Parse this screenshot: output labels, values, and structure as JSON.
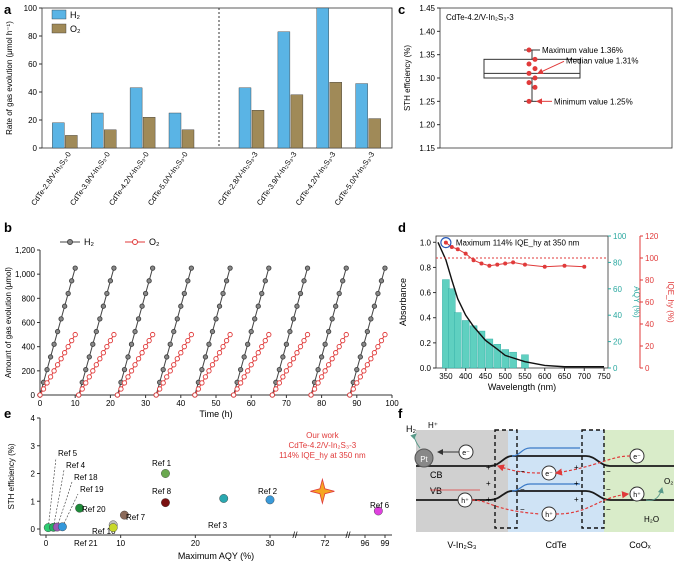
{
  "panels": {
    "a": {
      "letter": "a",
      "chart_data": {
        "type": "bar",
        "ylabel": "Rate of gas evolution (μmol h⁻¹)",
        "ylim": [
          0,
          100
        ],
        "yticks": [
          0,
          20,
          40,
          60,
          80,
          100
        ],
        "categories": [
          "CdTe-2.8/V-In₂S₃-0",
          "CdTe-3.9/V-In₂S₃-0",
          "CdTe-4.2/V-In₂S₃-0",
          "CdTe-5.0/V-In₂S₃-0",
          "CdTe-2.8/V-In₂S₃-3",
          "CdTe-3.9/V-In₂S₃-3",
          "CdTe-4.2/V-In₂S₃-3",
          "CdTe-5.0/V-In₂S₃-3"
        ],
        "series": [
          {
            "name": "H₂",
            "color": "#5ab4e5",
            "values": [
              18,
              25,
              43,
              25,
              43,
              83,
              100,
              46
            ]
          },
          {
            "name": "O₂",
            "color": "#a08a58",
            "values": [
              9,
              13,
              22,
              13,
              27,
              38,
              47,
              21
            ]
          }
        ],
        "legend_placement": "top-left"
      }
    },
    "b": {
      "letter": "b",
      "chart_data": {
        "type": "line",
        "xlabel": "Time (h)",
        "ylabel": "Amount of gas evolution (μmol)",
        "xlim": [
          0,
          100
        ],
        "ylim": [
          0,
          1200
        ],
        "xticks": [
          0,
          10,
          20,
          30,
          40,
          50,
          60,
          70,
          80,
          90,
          100
        ],
        "yticks": [
          0,
          200,
          400,
          600,
          800,
          1000,
          1200
        ],
        "cycle_hours": [
          0,
          1,
          2,
          3,
          4,
          5,
          6,
          7,
          8,
          9,
          10
        ],
        "cycle_starts": [
          0,
          11,
          22,
          33,
          44,
          55,
          66,
          77,
          88
        ],
        "series": [
          {
            "name": "H₂",
            "color": "#444444",
            "per_cycle": [
              0,
              105,
              210,
              315,
              420,
              525,
              630,
              735,
              840,
              945,
              1050
            ]
          },
          {
            "name": "O₂",
            "color": "#e03a3a",
            "per_cycle": [
              0,
              50,
              100,
              150,
              200,
              250,
              300,
              350,
              400,
              450,
              500
            ]
          }
        ]
      }
    },
    "c": {
      "letter": "c",
      "chart_data": {
        "type": "box",
        "title": "CdTe-4.2/V-In₂S₃-3",
        "ylabel": "STH efficiency (%)",
        "ylim": [
          1.15,
          1.45
        ],
        "yticks": [
          1.15,
          1.2,
          1.25,
          1.3,
          1.35,
          1.4,
          1.45
        ],
        "box": {
          "q1": 1.3,
          "median": 1.31,
          "q3": 1.34,
          "min": 1.25,
          "max": 1.36
        },
        "points": [
          1.36,
          1.34,
          1.33,
          1.32,
          1.31,
          1.3,
          1.29,
          1.28,
          1.25
        ],
        "annotations": {
          "max": "Maximum value 1.36%",
          "median": "Median value 1.31%",
          "min": "Minimum value 1.25%"
        }
      }
    },
    "d": {
      "letter": "d",
      "chart_data": {
        "type": "bar+line",
        "xlabel": "Wavelength (nm)",
        "ylabel_left": "Absorbance",
        "ylabel_right1": "AQY (%)",
        "ylabel_right2": "IQE_hy (%)",
        "xlim": [
          325,
          760
        ],
        "xticks": [
          350,
          400,
          450,
          500,
          550,
          600,
          650,
          700,
          750
        ],
        "abs_ticks": [
          0,
          0.2,
          0.4,
          0.6,
          0.8,
          1.0
        ],
        "aqy_ticks": [
          0,
          20,
          40,
          60,
          80,
          100
        ],
        "iqe_ticks": [
          0,
          20,
          40,
          60,
          80,
          100,
          120
        ],
        "aqy_bars": {
          "x": [
            350,
            365,
            380,
            400,
            420,
            440,
            460,
            480,
            500,
            520,
            550
          ],
          "values": [
            67,
            60,
            42,
            36,
            32,
            28,
            22,
            18,
            14,
            12,
            10
          ]
        },
        "aqy_color": "#5fd0c0",
        "absorbance": {
          "x": [
            330,
            350,
            365,
            380,
            400,
            420,
            450,
            480,
            500,
            550,
            600,
            650,
            700,
            750
          ],
          "values": [
            1.0,
            0.86,
            0.7,
            0.55,
            0.42,
            0.33,
            0.22,
            0.15,
            0.1,
            0.05,
            0.02,
            0.01,
            0.01,
            0.01
          ]
        },
        "iqe": {
          "x": [
            350,
            365,
            380,
            400,
            420,
            440,
            460,
            480,
            500,
            520,
            550,
            600,
            650,
            700
          ],
          "values": [
            114,
            110,
            108,
            104,
            98,
            95,
            93,
            94,
            95,
            96,
            94,
            92,
            93,
            92
          ]
        },
        "iqe_color": "#e03a3a",
        "iqe_ref": 100,
        "annotation": "Maximum 114% IQE_hy at 350 nm"
      }
    },
    "e": {
      "letter": "e",
      "chart_data": {
        "type": "scatter",
        "xlabel": "Maximum AQY (%)",
        "ylabel": "STH efficiency (%)",
        "ylim": [
          0,
          4
        ],
        "yticks": [
          0,
          1,
          2,
          3,
          4
        ],
        "xticks": [
          "0",
          "10",
          "20",
          "30",
          "72",
          "96",
          "99"
        ],
        "points": [
          {
            "name": "Ref 5",
            "x": 0.3,
            "y": 0.05,
            "color": "#2ecc71"
          },
          {
            "name": "Ref 4",
            "x": 1.0,
            "y": 0.06,
            "color": "#27ae60"
          },
          {
            "name": "Ref 18",
            "x": 1.5,
            "y": 0.07,
            "color": "#9b59b6"
          },
          {
            "name": "Ref 19",
            "x": 2.2,
            "y": 0.08,
            "color": "#3498db"
          },
          {
            "name": "Ref 20",
            "x": 4.5,
            "y": 0.75,
            "color": "#1e8c3a"
          },
          {
            "name": "Ref 10",
            "x": 9.0,
            "y": 0.15,
            "color": "#c0c0c0"
          },
          {
            "name": "Ref 21",
            "x": 9.0,
            "y": 0.05,
            "color": "#c8d82a"
          },
          {
            "name": "Ref 7",
            "x": 10.5,
            "y": 0.5,
            "color": "#8a6a5a"
          },
          {
            "name": "Ref 1",
            "x": 16.0,
            "y": 2.0,
            "color": "#6aa84f"
          },
          {
            "name": "Ref 8",
            "x": 16.0,
            "y": 0.95,
            "color": "#7a1010"
          },
          {
            "name": "Ref 3",
            "x": 23.8,
            "y": 1.1,
            "color": "#2aa8b0"
          },
          {
            "name": "Ref 2",
            "x": 30.0,
            "y": 1.05,
            "color": "#3a9ad9"
          },
          {
            "name": "Ref 6",
            "x": 98.0,
            "y": 0.65,
            "color": "#e040e0"
          }
        ],
        "ours": {
          "x": 70.0,
          "y": 1.36,
          "line1": "Our work",
          "line2": "CdTe-4.2/V-In₂S₃-3",
          "line3": "114% IQE_hy at 350 nm",
          "color": "#e03a3a"
        }
      }
    },
    "f": {
      "letter": "f",
      "labels": {
        "h2": "H₂",
        "hplus": "H⁺",
        "pt": "Pt",
        "cb": "CB",
        "vb": "VB",
        "o2": "O₂",
        "h2o": "H₂O",
        "e": "e⁻",
        "h": "h⁺",
        "vin2s3": "V-In₂S₃",
        "cdte": "CdTe",
        "coox": "CoOₓ"
      },
      "colors": {
        "vin2s3": "#d0d0d0",
        "cdte": "#cfe3f5",
        "coox": "#d9ecc9",
        "arrow": "#e03a3a"
      }
    }
  }
}
